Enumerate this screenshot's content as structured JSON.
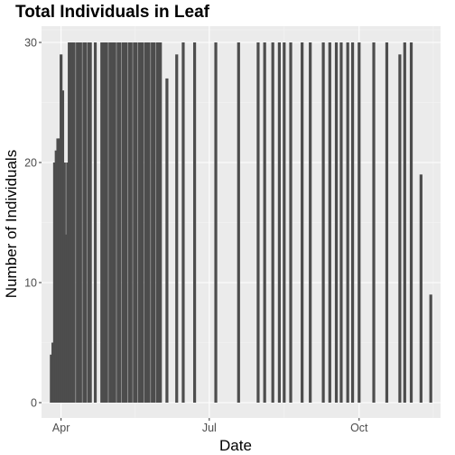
{
  "colors": {
    "panel_background": "#ebebeb",
    "major_grid": "#ffffff",
    "minor_grid": "#f5f5f5",
    "bar_fill": "#4d4d4d",
    "tick_text": "#4d4d4d",
    "text": "#000000"
  },
  "chart_data": {
    "type": "bar",
    "title": "Total Individuals in Leaf",
    "xlabel": "Date",
    "ylabel": "Number of Individuals",
    "ylim": [
      0,
      31.5
    ],
    "xlim": [
      "2016-03-20",
      "2016-11-20"
    ],
    "grid": true,
    "legend": "none",
    "x_ticks": [
      {
        "label": "Apr",
        "date": "2016-04-01"
      },
      {
        "label": "Jul",
        "date": "2016-07-01"
      },
      {
        "label": "Oct",
        "date": "2016-10-01"
      }
    ],
    "y_ticks": [
      0,
      10,
      20,
      30
    ],
    "series": [
      {
        "x": [
          "2016-03-26",
          "2016-03-27",
          "2016-03-28",
          "2016-03-29",
          "2016-03-30",
          "2016-03-31",
          "2016-04-01",
          "2016-04-02",
          "2016-04-03",
          "2016-04-04",
          "2016-04-05",
          "2016-04-06",
          "2016-04-07",
          "2016-04-08",
          "2016-04-09",
          "2016-04-11",
          "2016-04-12",
          "2016-04-13",
          "2016-04-15",
          "2016-04-16",
          "2016-04-18",
          "2016-04-19",
          "2016-04-22",
          "2016-04-26",
          "2016-04-27",
          "2016-04-28",
          "2016-04-29",
          "2016-05-01",
          "2016-05-02",
          "2016-05-03",
          "2016-05-04",
          "2016-05-06",
          "2016-05-07",
          "2016-05-09",
          "2016-05-10",
          "2016-05-11",
          "2016-05-13",
          "2016-05-14",
          "2016-05-16",
          "2016-05-17",
          "2016-05-19",
          "2016-05-20",
          "2016-05-21",
          "2016-05-23",
          "2016-05-24",
          "2016-05-25",
          "2016-05-27",
          "2016-05-28",
          "2016-05-30",
          "2016-05-31",
          "2016-06-01",
          "2016-06-05",
          "2016-06-11",
          "2016-06-15",
          "2016-06-22",
          "2016-07-05",
          "2016-07-19",
          "2016-07-31",
          "2016-08-04",
          "2016-08-09",
          "2016-08-13",
          "2016-08-16",
          "2016-08-20",
          "2016-08-27",
          "2016-09-01",
          "2016-09-09",
          "2016-09-13",
          "2016-09-17",
          "2016-09-20",
          "2016-09-24",
          "2016-09-27",
          "2016-10-01",
          "2016-10-10",
          "2016-10-18",
          "2016-10-26",
          "2016-10-29",
          "2016-11-02",
          "2016-11-08",
          "2016-11-14"
        ],
        "values": [
          4,
          5,
          20,
          21,
          22,
          22,
          29,
          26,
          20,
          14,
          20,
          30,
          30,
          30,
          30,
          30,
          30,
          30,
          30,
          30,
          30,
          30,
          30,
          30,
          30,
          30,
          30,
          30,
          30,
          30,
          30,
          30,
          30,
          30,
          30,
          30,
          30,
          30,
          30,
          30,
          30,
          30,
          30,
          30,
          30,
          30,
          30,
          30,
          30,
          30,
          30,
          27,
          29,
          30,
          30,
          30,
          30,
          30,
          30,
          30,
          30,
          30,
          30,
          30,
          30,
          30,
          30,
          30,
          30,
          30,
          30,
          30,
          30,
          30,
          29,
          30,
          30,
          19,
          9
        ]
      }
    ]
  }
}
